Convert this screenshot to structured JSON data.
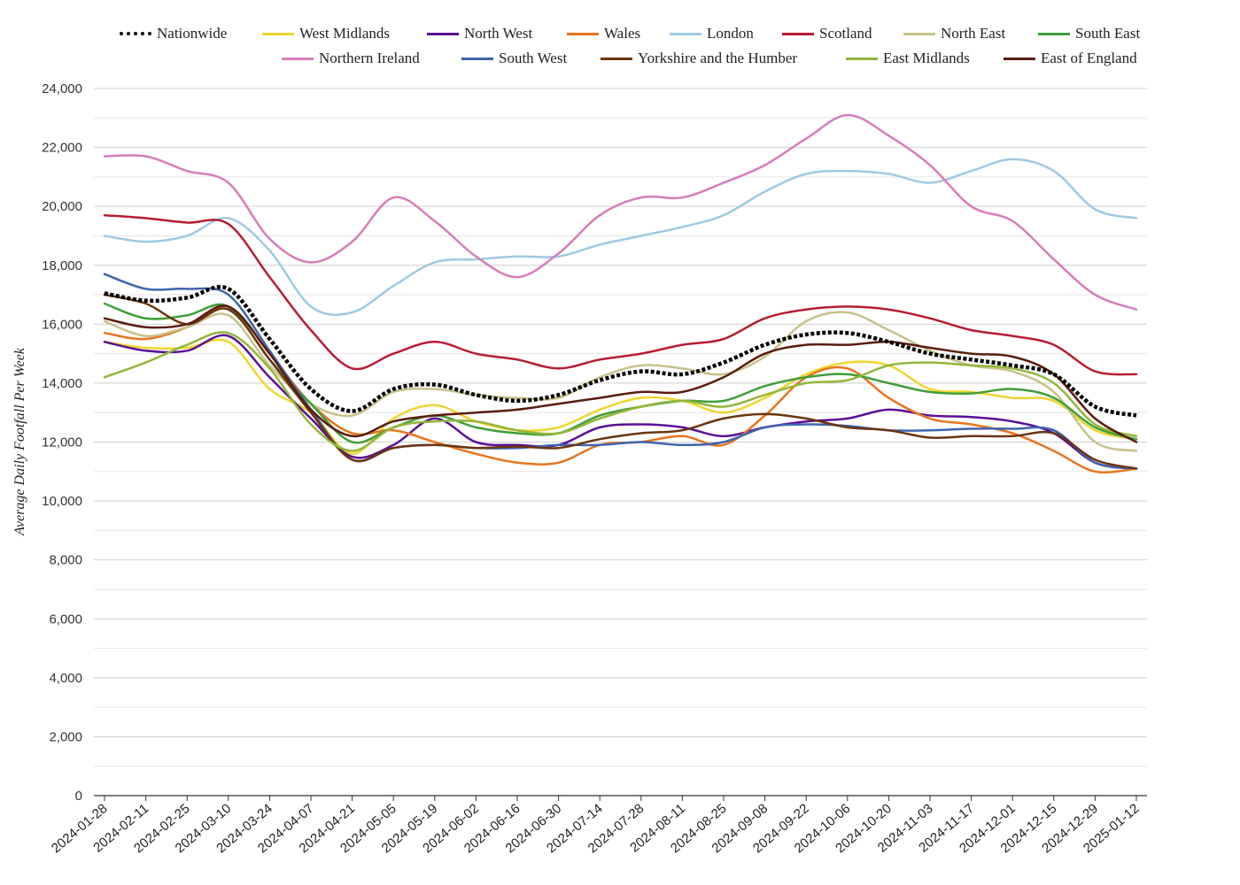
{
  "chart_data": {
    "type": "line",
    "title": "",
    "xlabel": "",
    "ylabel": "Average Daily Footfall Per Week",
    "ylim": [
      0,
      24000
    ],
    "yticks": [
      0,
      2000,
      4000,
      6000,
      8000,
      10000,
      12000,
      14000,
      16000,
      18000,
      20000,
      22000,
      24000
    ],
    "ytick_labels": [
      "0",
      "2,000",
      "4,000",
      "6,000",
      "8,000",
      "10,000",
      "12,000",
      "14,000",
      "16,000",
      "18,000",
      "20,000",
      "22,000",
      "24,000"
    ],
    "grid": true,
    "legend_position": "top",
    "x": [
      "2024-01-28",
      "2024-02-11",
      "2024-02-25",
      "2024-03-10",
      "2024-03-24",
      "2024-04-07",
      "2024-04-21",
      "2024-05-05",
      "2024-05-19",
      "2024-06-02",
      "2024-06-16",
      "2024-06-30",
      "2024-07-14",
      "2024-07-28",
      "2024-08-11",
      "2024-08-25",
      "2024-09-08",
      "2024-09-22",
      "2024-10-06",
      "2024-10-20",
      "2024-11-03",
      "2024-11-17",
      "2024-12-01",
      "2024-12-15",
      "2024-12-29",
      "2025-01-12"
    ],
    "series": [
      {
        "name": "Nationwide",
        "color": "#000000",
        "dashed": true,
        "values": [
          17050,
          16800,
          16900,
          17200,
          15500,
          13800,
          13050,
          13800,
          13950,
          13600,
          13400,
          13600,
          14100,
          14400,
          14300,
          14700,
          15300,
          15650,
          15700,
          15400,
          15000,
          14800,
          14600,
          14300,
          13200,
          12900
        ]
      },
      {
        "name": "West Midlands",
        "color": "#f0d530",
        "values": [
          15400,
          15200,
          15200,
          15400,
          13800,
          13000,
          11600,
          12800,
          13250,
          12700,
          12400,
          12500,
          13100,
          13500,
          13400,
          13000,
          13500,
          14300,
          14700,
          14600,
          13800,
          13700,
          13500,
          13400,
          12400,
          12100
        ]
      },
      {
        "name": "North West",
        "color": "#5b0f96",
        "values": [
          15400,
          15100,
          15100,
          15600,
          14200,
          12800,
          11500,
          11900,
          12800,
          12000,
          11900,
          11900,
          12500,
          12600,
          12500,
          12200,
          12500,
          12700,
          12800,
          13100,
          12900,
          12850,
          12700,
          12300,
          11300,
          11100
        ]
      },
      {
        "name": "Wales",
        "color": "#e87420",
        "values": [
          15700,
          15500,
          15900,
          16600,
          15000,
          13300,
          12300,
          12400,
          12000,
          11600,
          11300,
          11300,
          11900,
          12000,
          12200,
          11900,
          12900,
          14200,
          14500,
          13500,
          12800,
          12600,
          12300,
          11700,
          11000,
          11100
        ]
      },
      {
        "name": "London",
        "color": "#9ecae1",
        "values": [
          19000,
          18800,
          19000,
          19600,
          18500,
          16600,
          16400,
          17300,
          18100,
          18200,
          18300,
          18300,
          18700,
          19000,
          19300,
          19700,
          20500,
          21100,
          21200,
          21100,
          20800,
          21200,
          21600,
          21200,
          19900,
          19600
        ]
      },
      {
        "name": "Scotland",
        "color": "#b81c34",
        "values": [
          19700,
          19600,
          19450,
          19400,
          17600,
          15800,
          14500,
          15000,
          15400,
          15000,
          14800,
          14500,
          14800,
          15000,
          15300,
          15500,
          16200,
          16500,
          16600,
          16500,
          16200,
          15800,
          15600,
          15300,
          14400,
          14300
        ]
      },
      {
        "name": "North East",
        "color": "#c7c18a",
        "values": [
          16100,
          15600,
          15900,
          16300,
          14600,
          13300,
          12900,
          13700,
          13800,
          13600,
          13500,
          13500,
          14200,
          14600,
          14500,
          14300,
          14900,
          16100,
          16400,
          15800,
          15100,
          14600,
          14400,
          13700,
          12000,
          11700
        ]
      },
      {
        "name": "South East",
        "color": "#3f9e3a",
        "values": [
          16700,
          16200,
          16300,
          16600,
          14800,
          13300,
          12000,
          12500,
          12900,
          12500,
          12300,
          12300,
          12900,
          13200,
          13400,
          13400,
          13900,
          14200,
          14300,
          14000,
          13700,
          13650,
          13800,
          13500,
          12500,
          12100
        ]
      },
      {
        "name": "Northern Ireland",
        "color": "#d77db8",
        "values": [
          21700,
          21700,
          21200,
          20800,
          18900,
          18100,
          18800,
          20300,
          19500,
          18300,
          17600,
          18400,
          19700,
          20300,
          20300,
          20800,
          21400,
          22300,
          23100,
          22400,
          21400,
          20000,
          19500,
          18200,
          17000,
          16500
        ]
      },
      {
        "name": "South West",
        "color": "#3f65ad",
        "values": [
          17700,
          17200,
          17200,
          17000,
          15100,
          13100,
          11400,
          11800,
          11900,
          11800,
          11800,
          11900,
          11900,
          12000,
          11900,
          12000,
          12500,
          12600,
          12550,
          12400,
          12400,
          12450,
          12450,
          12400,
          11300,
          11100
        ]
      },
      {
        "name": "Yorkshire and the Humber",
        "color": "#6b3510",
        "values": [
          17000,
          16700,
          16000,
          16500,
          14800,
          13000,
          11400,
          11800,
          11900,
          11800,
          11850,
          11800,
          12100,
          12300,
          12400,
          12800,
          12950,
          12800,
          12500,
          12400,
          12150,
          12200,
          12200,
          12300,
          11400,
          11100
        ]
      },
      {
        "name": "East Midlands",
        "color": "#93b63a",
        "values": [
          14200,
          14700,
          15300,
          15700,
          14500,
          12600,
          11700,
          12500,
          12700,
          12700,
          12400,
          12300,
          12800,
          13200,
          13400,
          13200,
          13600,
          14000,
          14100,
          14600,
          14700,
          14600,
          14500,
          14000,
          12600,
          12200
        ]
      },
      {
        "name": "East of England",
        "color": "#5a1c10",
        "values": [
          16200,
          15900,
          16000,
          16600,
          15000,
          13100,
          12200,
          12700,
          12900,
          13000,
          13100,
          13300,
          13500,
          13700,
          13700,
          14200,
          15000,
          15300,
          15300,
          15400,
          15200,
          15000,
          14900,
          14300,
          12800,
          12000
        ]
      }
    ]
  }
}
